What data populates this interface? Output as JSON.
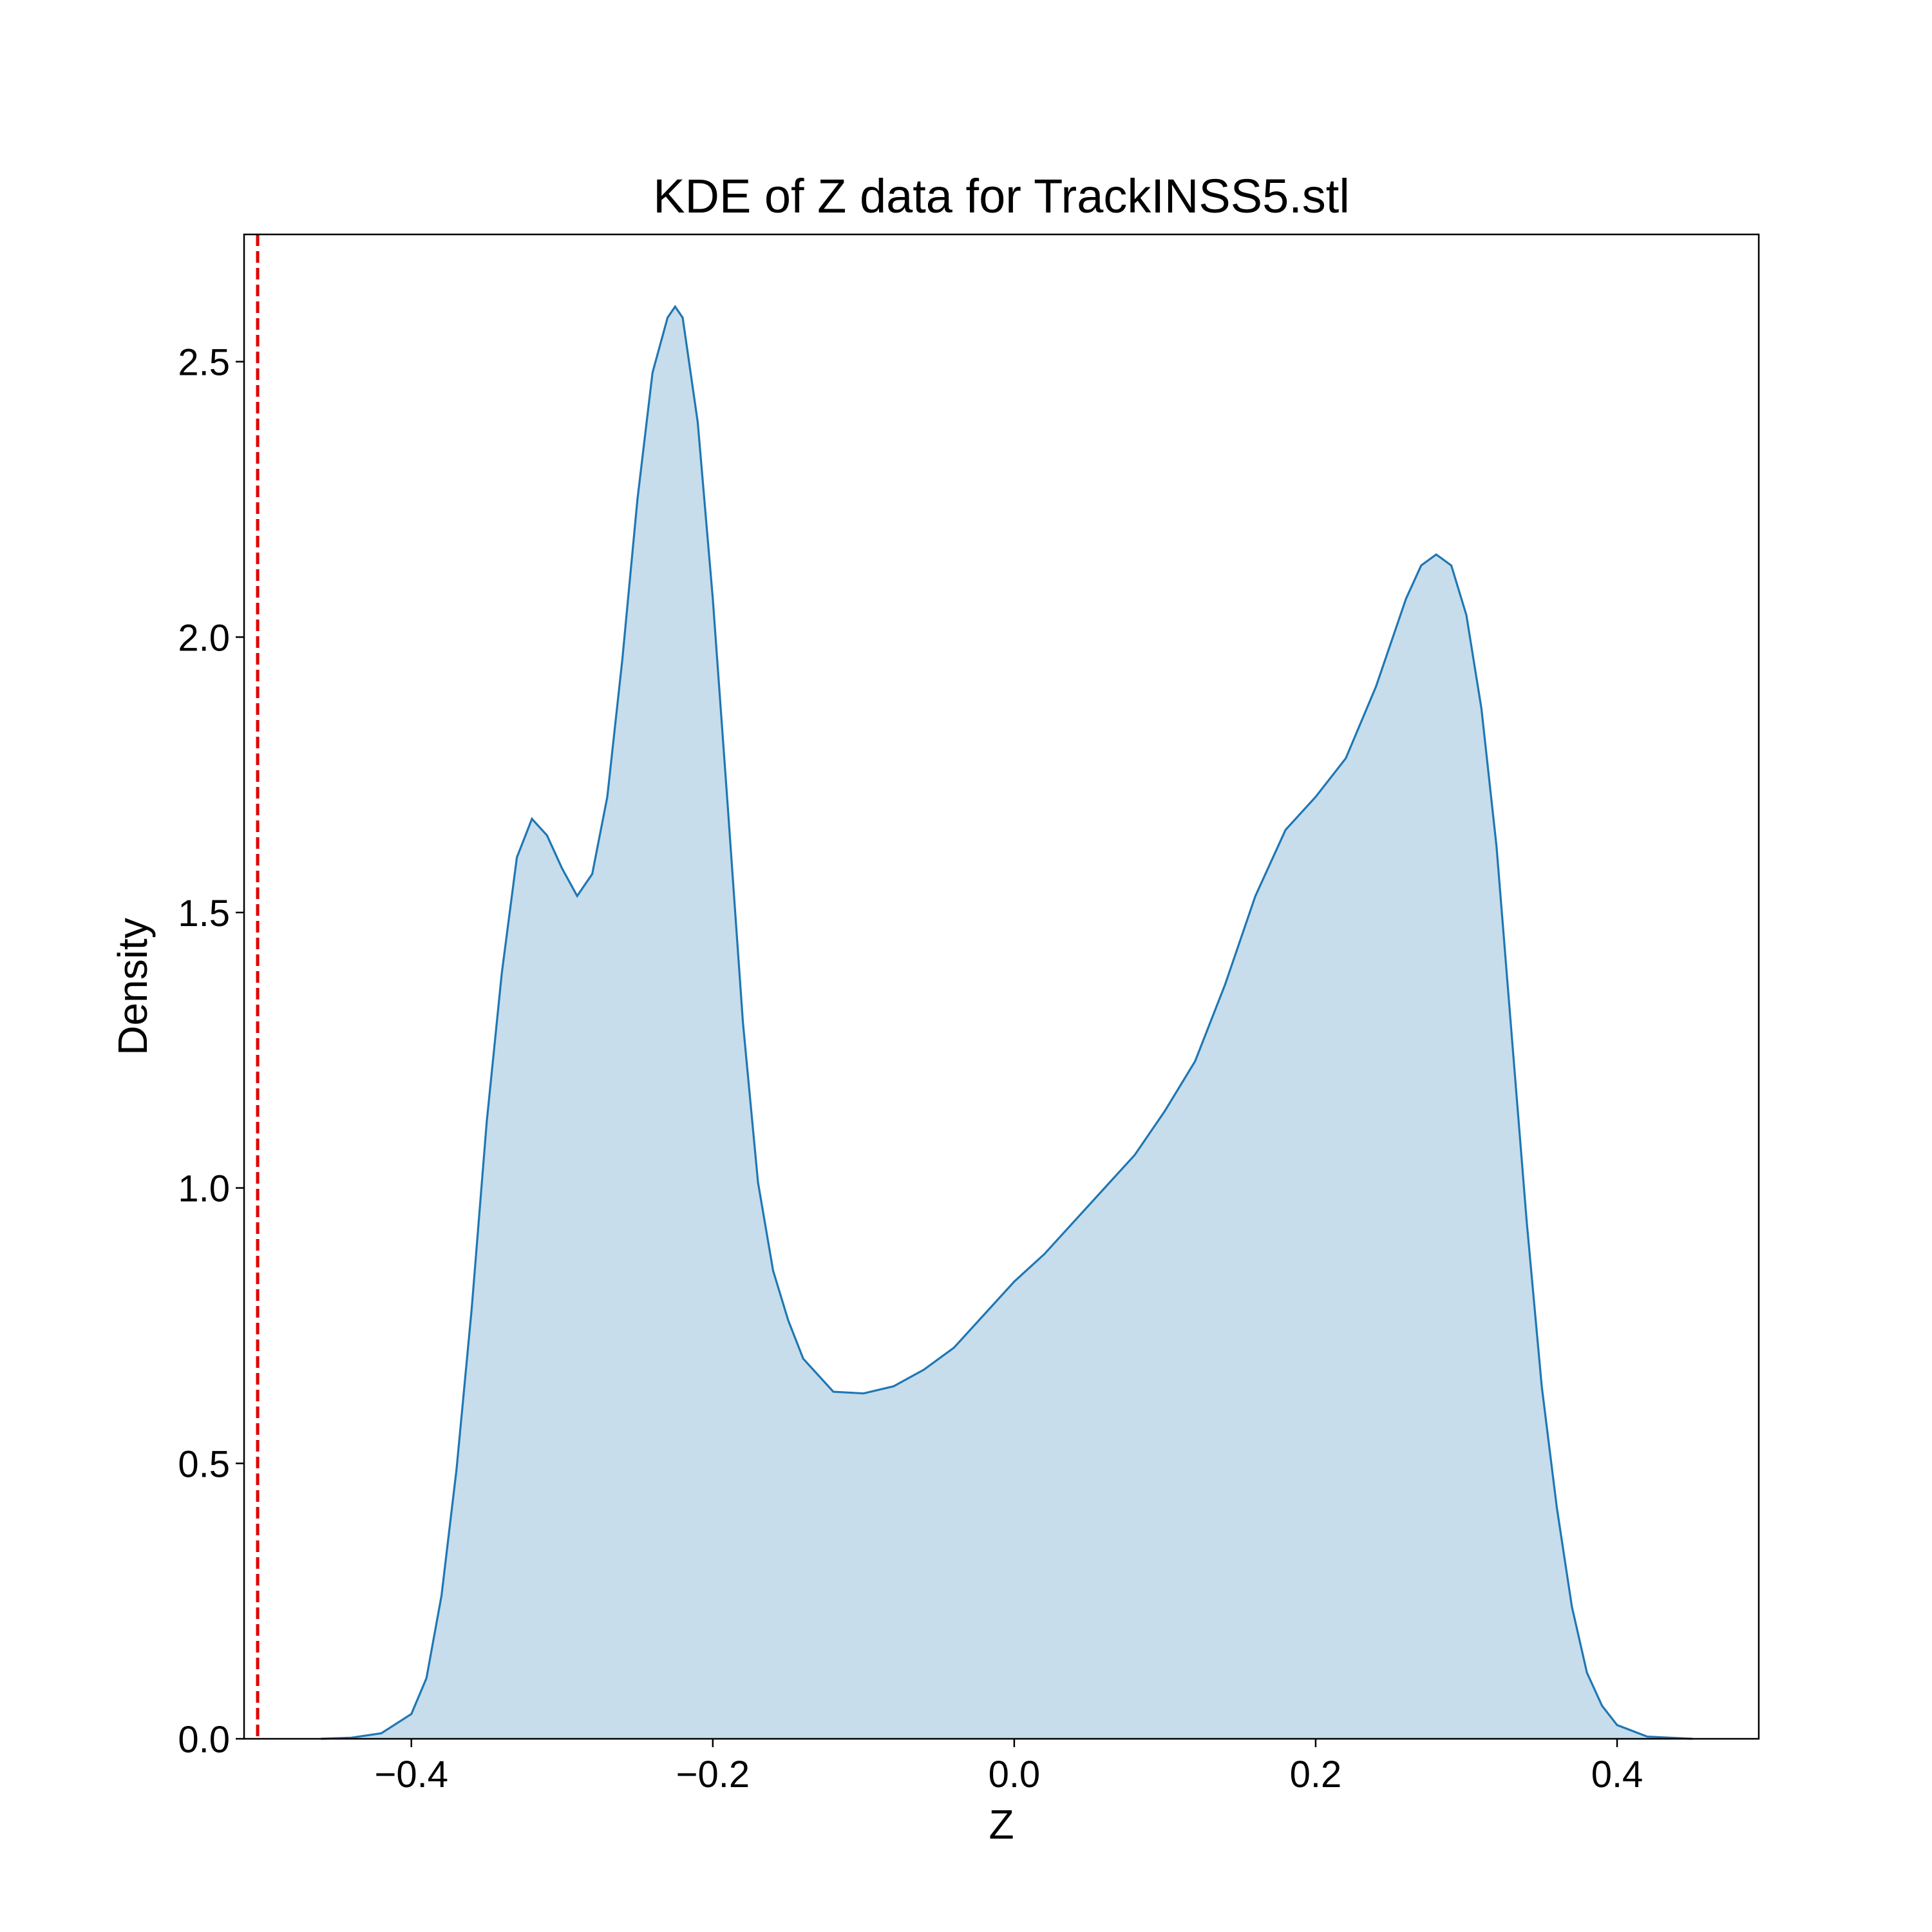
{
  "chart_data": {
    "type": "area",
    "title": "KDE of Z data for TrackINSS5.stl",
    "xlabel": "Z",
    "ylabel": "Density",
    "x": [
      -0.46,
      -0.44,
      -0.42,
      -0.4,
      -0.39,
      -0.38,
      -0.37,
      -0.36,
      -0.35,
      -0.34,
      -0.33,
      -0.32,
      -0.31,
      -0.3,
      -0.29,
      -0.28,
      -0.27,
      -0.26,
      -0.25,
      -0.24,
      -0.23,
      -0.225,
      -0.22,
      -0.21,
      -0.2,
      -0.19,
      -0.18,
      -0.17,
      -0.16,
      -0.15,
      -0.14,
      -0.12,
      -0.1,
      -0.08,
      -0.06,
      -0.04,
      -0.02,
      0.0,
      0.02,
      0.04,
      0.06,
      0.08,
      0.1,
      0.12,
      0.14,
      0.16,
      0.18,
      0.2,
      0.22,
      0.24,
      0.26,
      0.27,
      0.28,
      0.29,
      0.3,
      0.31,
      0.32,
      0.33,
      0.34,
      0.35,
      0.36,
      0.37,
      0.38,
      0.39,
      0.4,
      0.42,
      0.45
    ],
    "series": [
      {
        "name": "Z",
        "color": "#1f77b4",
        "values": [
          0,
          0.002,
          0.01,
          0.045,
          0.11,
          0.26,
          0.49,
          0.78,
          1.12,
          1.39,
          1.6,
          1.67,
          1.64,
          1.58,
          1.53,
          1.57,
          1.71,
          1.96,
          2.25,
          2.48,
          2.58,
          2.6,
          2.58,
          2.39,
          2.07,
          1.69,
          1.3,
          1.01,
          0.85,
          0.76,
          0.69,
          0.63,
          0.627,
          0.64,
          0.67,
          0.71,
          0.77,
          0.83,
          0.88,
          0.94,
          1.0,
          1.06,
          1.14,
          1.23,
          1.37,
          1.53,
          1.65,
          1.71,
          1.78,
          1.91,
          2.07,
          2.13,
          2.15,
          2.13,
          2.04,
          1.87,
          1.62,
          1.28,
          0.94,
          0.64,
          0.42,
          0.24,
          0.12,
          0.06,
          0.025,
          0.004,
          0
        ]
      }
    ],
    "vline": {
      "x": -0.502,
      "color": "#e00000"
    },
    "xlim": [
      -0.511,
      0.494
    ],
    "ylim": [
      0,
      2.731
    ],
    "xticks": [
      {
        "value": -0.4,
        "label": "−0.4"
      },
      {
        "value": -0.2,
        "label": "−0.2"
      },
      {
        "value": 0.0,
        "label": "0.0"
      },
      0.2,
      0.4
    ],
    "yticks": [
      {
        "value": 0,
        "label": "0.0"
      },
      0.5,
      {
        "value": 1,
        "label": "1.0"
      },
      1.5,
      {
        "value": 2,
        "label": "2.0"
      },
      2.5
    ]
  }
}
